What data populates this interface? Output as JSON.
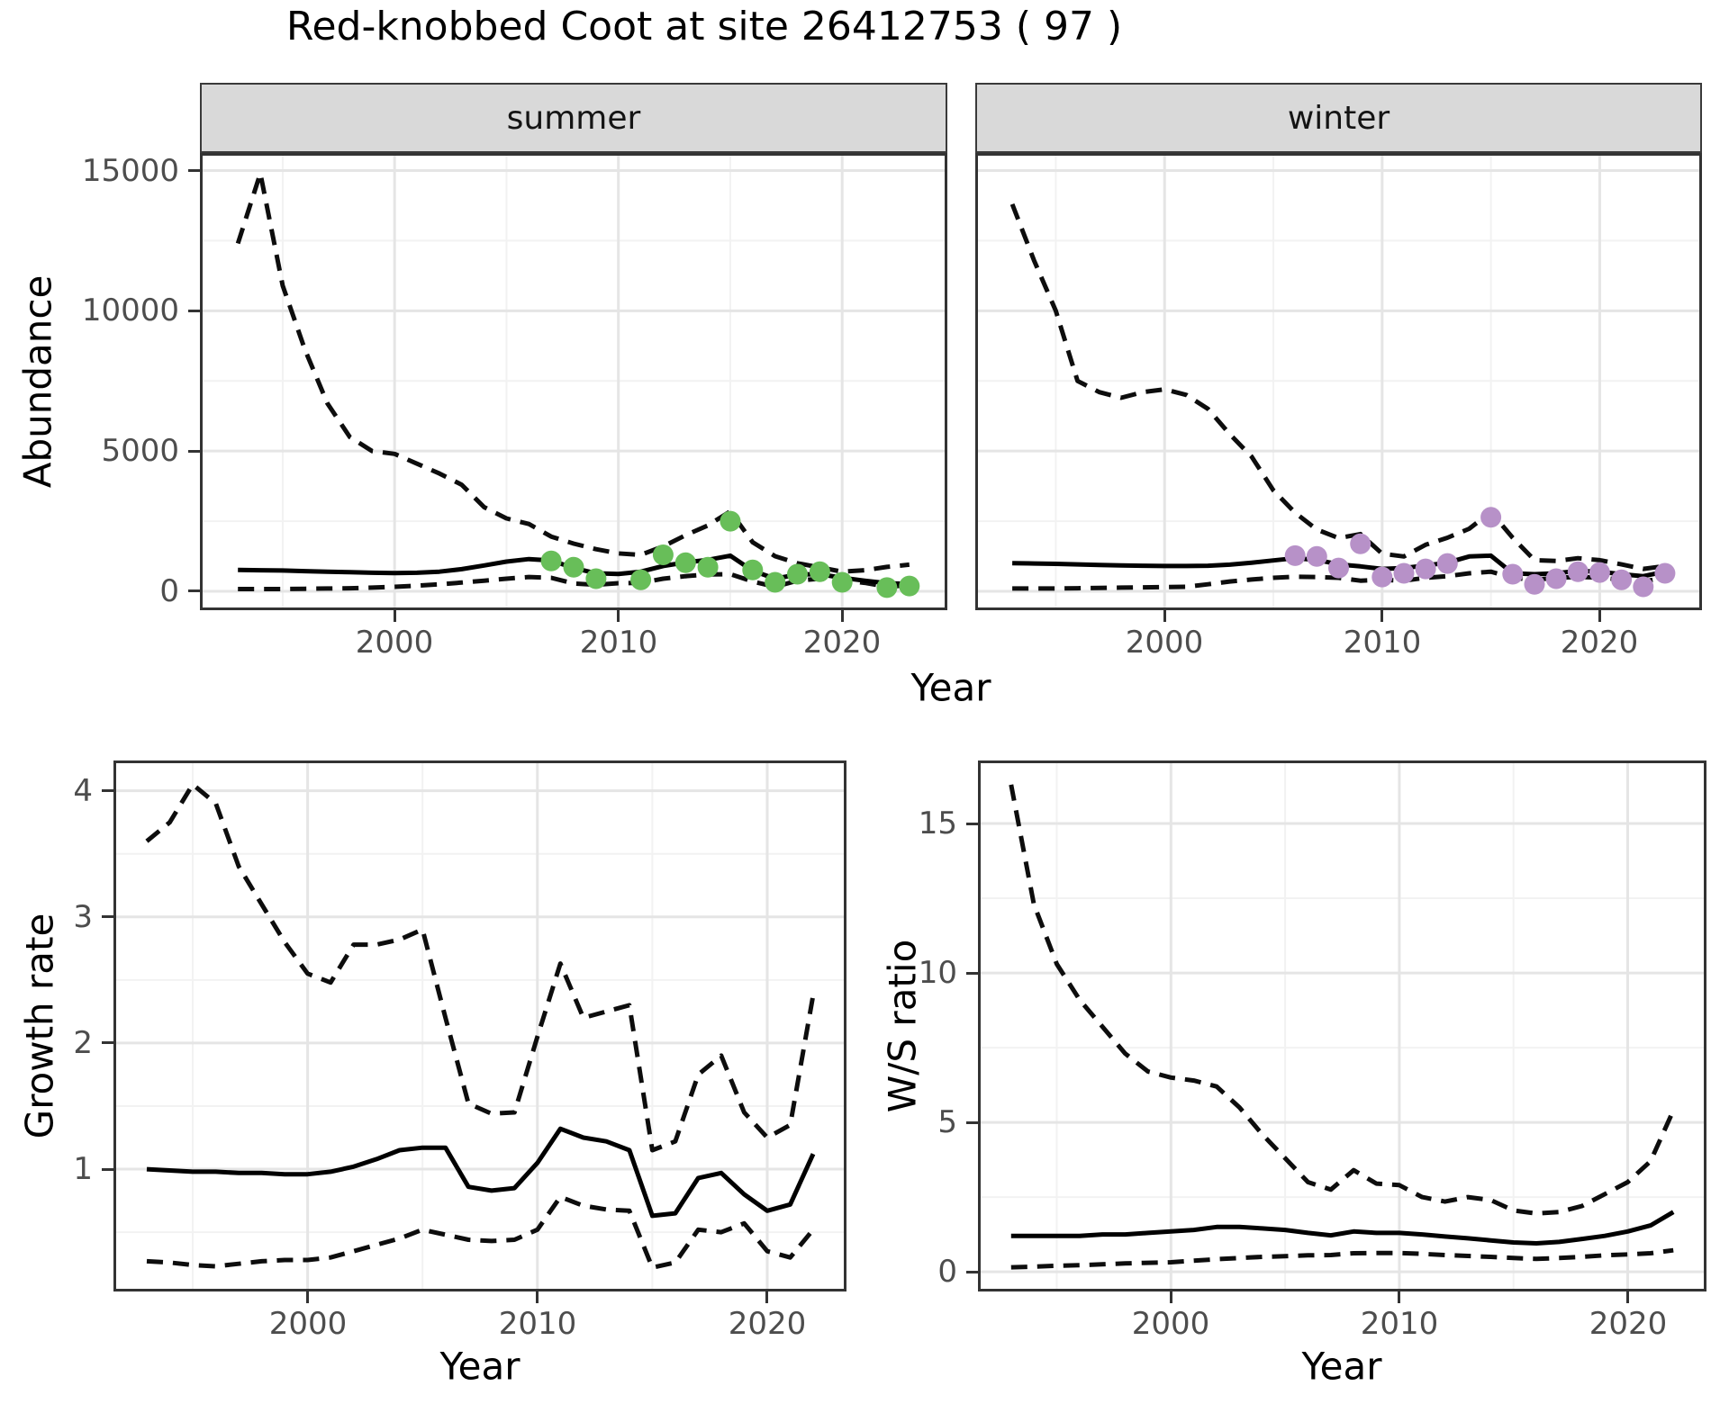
{
  "title": "Red-knobbed Coot at site 26412753 ( 97 )",
  "colors": {
    "summer_points": "#68BE59",
    "winter_points": "#B791C8",
    "ci_line": "#0d0d0d",
    "median_line": "#000000",
    "strip_bg": "#d9d9d9",
    "grid_major": "#e5e5e5",
    "grid_minor": "#f2f2f2",
    "panel_border": "#333333",
    "tick_text": "#4d4d4d",
    "panel_bg": "#ffffff"
  },
  "chart_data": [
    {
      "id": "abundance_summer",
      "type": "line",
      "facet_label": "summer",
      "xlabel": "Year",
      "ylabel": "Abundance",
      "x_ticks": [
        2000,
        2010,
        2020
      ],
      "x_minor": [
        1995,
        2005,
        2015
      ],
      "y_ticks": [
        0,
        5000,
        10000,
        15000
      ],
      "y_minor": [
        2500,
        7500,
        12500
      ],
      "xlim": [
        1991.3,
        2024.7
      ],
      "ylim": [
        -674,
        15626
      ],
      "grid": true,
      "legend_position": "none",
      "years": [
        1993,
        1994,
        1995,
        1996,
        1997,
        1998,
        1999,
        2000,
        2001,
        2002,
        2003,
        2004,
        2005,
        2006,
        2007,
        2008,
        2009,
        2010,
        2011,
        2012,
        2013,
        2014,
        2015,
        2016,
        2017,
        2018,
        2019,
        2020,
        2021,
        2022,
        2023
      ],
      "upper_ci": [
        12400,
        14900,
        10900,
        8600,
        6700,
        5500,
        5000,
        4900,
        4550,
        4200,
        3800,
        3000,
        2600,
        2400,
        1950,
        1700,
        1500,
        1350,
        1300,
        1600,
        2000,
        2350,
        2850,
        1750,
        1250,
        1000,
        850,
        700,
        750,
        870,
        950
      ],
      "median": [
        760,
        750,
        740,
        720,
        700,
        680,
        660,
        650,
        660,
        700,
        790,
        920,
        1060,
        1150,
        1100,
        830,
        640,
        620,
        700,
        900,
        1030,
        1120,
        1270,
        730,
        450,
        600,
        610,
        480,
        380,
        290,
        260
      ],
      "lower_ci": [
        80,
        80,
        80,
        90,
        100,
        110,
        130,
        160,
        200,
        250,
        310,
        380,
        450,
        510,
        480,
        280,
        230,
        290,
        300,
        450,
        540,
        600,
        610,
        350,
        160,
        380,
        450,
        400,
        300,
        160,
        220
      ],
      "point_years": [
        2007,
        2008,
        2009,
        2011,
        2012,
        2013,
        2014,
        2015,
        2016,
        2017,
        2018,
        2019,
        2020,
        2022,
        2023
      ],
      "point_values": [
        1080,
        860,
        450,
        410,
        1300,
        1020,
        860,
        2500,
        760,
        320,
        610,
        700,
        320,
        130,
        190
      ],
      "point_color": "#68BE59"
    },
    {
      "id": "abundance_winter",
      "type": "line",
      "facet_label": "winter",
      "xlabel": "Year",
      "ylabel": "Abundance",
      "x_ticks": [
        2000,
        2010,
        2020
      ],
      "x_minor": [
        1995,
        2005,
        2015
      ],
      "y_ticks": [
        0,
        5000,
        10000,
        15000
      ],
      "y_minor": [
        2500,
        7500,
        12500
      ],
      "xlim": [
        1991.3,
        2024.7
      ],
      "ylim": [
        -674,
        15626
      ],
      "grid": true,
      "legend_position": "none",
      "years": [
        1993,
        1994,
        1995,
        1996,
        1997,
        1998,
        1999,
        2000,
        2001,
        2002,
        2003,
        2004,
        2005,
        2006,
        2007,
        2008,
        2009,
        2010,
        2011,
        2012,
        2013,
        2014,
        2015,
        2016,
        2017,
        2018,
        2019,
        2020,
        2021,
        2022,
        2023
      ],
      "upper_ci": [
        13800,
        11800,
        10000,
        7500,
        7100,
        6900,
        7100,
        7200,
        7000,
        6500,
        5600,
        4800,
        3600,
        2800,
        2200,
        1900,
        2040,
        1340,
        1240,
        1660,
        1910,
        2230,
        2830,
        1910,
        1110,
        1080,
        1180,
        1110,
        960,
        800,
        900
      ],
      "median": [
        1000,
        990,
        980,
        960,
        940,
        920,
        910,
        900,
        900,
        910,
        950,
        1020,
        1100,
        1180,
        1120,
        960,
        890,
        800,
        830,
        920,
        1020,
        1240,
        1270,
        640,
        610,
        640,
        730,
        700,
        610,
        540,
        700
      ],
      "lower_ci": [
        100,
        100,
        100,
        110,
        120,
        130,
        140,
        150,
        160,
        250,
        350,
        420,
        480,
        520,
        510,
        480,
        380,
        410,
        380,
        480,
        540,
        640,
        700,
        480,
        410,
        480,
        510,
        490,
        410,
        350,
        480
      ],
      "point_years": [
        2006,
        2007,
        2008,
        2009,
        2010,
        2011,
        2012,
        2013,
        2015,
        2016,
        2017,
        2018,
        2019,
        2020,
        2021,
        2022,
        2023
      ],
      "point_values": [
        1270,
        1240,
        830,
        1690,
        510,
        640,
        800,
        990,
        2640,
        610,
        250,
        450,
        700,
        670,
        410,
        160,
        640
      ],
      "point_color": "#B791C8"
    },
    {
      "id": "growth_rate",
      "type": "line",
      "facet_label": "",
      "xlabel": "Year",
      "ylabel": "Growth rate",
      "x_ticks": [
        2000,
        2010,
        2020
      ],
      "x_minor": [
        1995,
        2005,
        2015
      ],
      "y_ticks": [
        1,
        2,
        3,
        4
      ],
      "y_minor": [
        0.5,
        1.5,
        2.5,
        3.5
      ],
      "xlim": [
        1991.55,
        2023.45
      ],
      "ylim": [
        0.03,
        4.24
      ],
      "grid": true,
      "legend_position": "none",
      "years": [
        1993,
        1994,
        1995,
        1996,
        1997,
        1998,
        1999,
        2000,
        2001,
        2002,
        2003,
        2004,
        2005,
        2006,
        2007,
        2008,
        2009,
        2010,
        2011,
        2012,
        2013,
        2014,
        2015,
        2016,
        2017,
        2018,
        2019,
        2020,
        2021,
        2022
      ],
      "upper_ci": [
        3.6,
        3.75,
        4.05,
        3.9,
        3.4,
        3.1,
        2.8,
        2.55,
        2.48,
        2.78,
        2.78,
        2.82,
        2.9,
        2.2,
        1.52,
        1.44,
        1.45,
        2.05,
        2.63,
        2.2,
        2.25,
        2.3,
        1.15,
        1.22,
        1.75,
        1.9,
        1.45,
        1.25,
        1.35,
        2.38
      ],
      "median": [
        1.0,
        0.99,
        0.98,
        0.98,
        0.97,
        0.97,
        0.96,
        0.96,
        0.98,
        1.02,
        1.08,
        1.15,
        1.17,
        1.17,
        0.86,
        0.83,
        0.85,
        1.05,
        1.32,
        1.25,
        1.22,
        1.15,
        0.63,
        0.65,
        0.93,
        0.97,
        0.8,
        0.67,
        0.72,
        1.12
      ],
      "lower_ci": [
        0.27,
        0.26,
        0.24,
        0.23,
        0.25,
        0.27,
        0.28,
        0.28,
        0.3,
        0.35,
        0.4,
        0.45,
        0.52,
        0.48,
        0.44,
        0.43,
        0.44,
        0.52,
        0.78,
        0.71,
        0.68,
        0.67,
        0.22,
        0.26,
        0.52,
        0.5,
        0.57,
        0.35,
        0.3,
        0.52
      ]
    },
    {
      "id": "ws_ratio",
      "type": "line",
      "facet_label": "",
      "xlabel": "Year",
      "ylabel": "W/S ratio",
      "x_ticks": [
        2000,
        2010,
        2020
      ],
      "x_minor": [
        1995,
        2005,
        2015
      ],
      "y_ticks": [
        0,
        5,
        10,
        15
      ],
      "y_minor": [
        2.5,
        7.5,
        12.5
      ],
      "xlim": [
        1991.55,
        2023.45
      ],
      "ylim": [
        -0.66,
        17.11
      ],
      "grid": true,
      "legend_position": "none",
      "years": [
        1993,
        1994,
        1995,
        1996,
        1997,
        1998,
        1999,
        2000,
        2001,
        2002,
        2003,
        2004,
        2005,
        2006,
        2007,
        2008,
        2009,
        2010,
        2011,
        2012,
        2013,
        2014,
        2015,
        2016,
        2017,
        2018,
        2019,
        2020,
        2021,
        2022
      ],
      "upper_ci": [
        16.3,
        12.3,
        10.3,
        9.1,
        8.2,
        7.3,
        6.7,
        6.5,
        6.4,
        6.2,
        5.5,
        4.6,
        3.8,
        3.0,
        2.75,
        3.4,
        2.95,
        2.9,
        2.5,
        2.35,
        2.5,
        2.4,
        2.05,
        1.95,
        2.0,
        2.2,
        2.6,
        3.0,
        3.7,
        5.4
      ],
      "median": [
        1.2,
        1.2,
        1.2,
        1.2,
        1.25,
        1.25,
        1.3,
        1.35,
        1.4,
        1.5,
        1.5,
        1.45,
        1.4,
        1.3,
        1.22,
        1.35,
        1.3,
        1.3,
        1.25,
        1.18,
        1.12,
        1.05,
        0.98,
        0.95,
        1.0,
        1.1,
        1.2,
        1.35,
        1.55,
        2.0
      ],
      "lower_ci": [
        0.15,
        0.17,
        0.2,
        0.22,
        0.25,
        0.28,
        0.3,
        0.32,
        0.37,
        0.42,
        0.46,
        0.5,
        0.52,
        0.55,
        0.56,
        0.62,
        0.63,
        0.63,
        0.6,
        0.56,
        0.53,
        0.5,
        0.46,
        0.43,
        0.46,
        0.5,
        0.55,
        0.58,
        0.62,
        0.72
      ]
    }
  ]
}
